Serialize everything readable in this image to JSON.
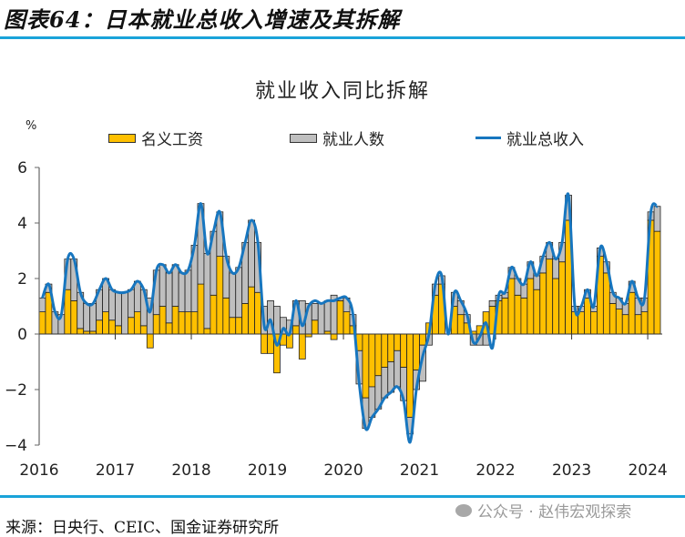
{
  "figure": {
    "title": "图表64：日本就业总收入增速及其拆解",
    "source": "来源：日央行、CEIC、国金证券研究所",
    "watermark": "公众号 · 赵伟宏观探索"
  },
  "colors": {
    "wage": "#FFC000",
    "employment": "#BFBFBF",
    "total": "#1776BF",
    "rule": "#1AA3D9"
  },
  "chart_data": {
    "type": "bar",
    "stacked": true,
    "title": "就业收入同比拆解",
    "ylabel": "%",
    "xlabel": "",
    "ylim": [
      -4,
      6
    ],
    "yticks": [
      -4,
      -2,
      0,
      2,
      4,
      6
    ],
    "xticks": [
      "2016",
      "2017",
      "2018",
      "2019",
      "2020",
      "2021",
      "2022",
      "2023",
      "2024"
    ],
    "legend_position": "top",
    "grid": false,
    "frequency": "monthly",
    "start": "2016-01",
    "series": [
      {
        "name": "名义工资",
        "type": "bar",
        "color": "#FFC000",
        "values": [
          0.8,
          1.5,
          0.0,
          0.0,
          1.6,
          1.2,
          0.2,
          0.1,
          0.1,
          0.5,
          0.8,
          0.5,
          0.3,
          0.0,
          0.6,
          0.8,
          0.3,
          -0.5,
          0.7,
          1.0,
          0.4,
          1.0,
          0.8,
          0.8,
          0.8,
          1.8,
          0.2,
          1.4,
          2.8,
          1.3,
          0.6,
          0.6,
          1.1,
          1.7,
          1.5,
          -0.7,
          -0.7,
          -1.4,
          -0.4,
          -0.5,
          0.3,
          -0.9,
          -0.1,
          0.5,
          0.0,
          0.1,
          -0.2,
          1.2,
          0.8,
          0.3,
          -0.6,
          -2.3,
          -1.9,
          -1.5,
          -1.2,
          -1.0,
          -0.6,
          -1.2,
          -3.0,
          -1.3,
          -0.4,
          0.4,
          1.4,
          1.8,
          0.0,
          1.0,
          0.7,
          0.4,
          0.1,
          0.3,
          0.8,
          1.0,
          1.2,
          1.3,
          2.0,
          1.4,
          1.3,
          2.0,
          1.6,
          2.2,
          2.7,
          2.0,
          2.6,
          4.1,
          0.8,
          0.8,
          1.3,
          0.8,
          2.8,
          2.2,
          1.1,
          0.9,
          0.7,
          1.5,
          0.7,
          0.8,
          4.1,
          3.7
        ],
        "note": "estimated monthly values read from chart"
      },
      {
        "name": "就业人数",
        "type": "bar",
        "color": "#BFBFBF",
        "values": [
          0.5,
          0.3,
          0.8,
          0.7,
          1.1,
          1.5,
          1.3,
          1.0,
          1.0,
          1.1,
          1.2,
          1.1,
          1.2,
          1.5,
          1.0,
          1.1,
          1.3,
          1.3,
          1.6,
          1.5,
          1.8,
          1.5,
          1.4,
          1.5,
          2.4,
          2.9,
          2.7,
          2.3,
          1.6,
          1.5,
          1.6,
          1.8,
          2.2,
          2.4,
          1.8,
          1.0,
          1.2,
          1.0,
          0.6,
          0.5,
          0.9,
          1.2,
          1.1,
          0.6,
          1.1,
          1.1,
          1.4,
          0.1,
          0.5,
          0.4,
          -1.2,
          -1.1,
          -1.1,
          -1.2,
          -1.1,
          -1.1,
          -1.3,
          -1.2,
          -0.6,
          -0.7,
          -1.3,
          -0.4,
          0.4,
          0.3,
          0.0,
          0.5,
          0.5,
          0.3,
          -0.4,
          -0.4,
          -0.4,
          0.2,
          0.2,
          0.2,
          0.4,
          0.6,
          0.5,
          0.6,
          0.5,
          0.6,
          0.6,
          0.7,
          0.7,
          0.9,
          0.2,
          0.2,
          0.3,
          0.2,
          0.3,
          0.4,
          0.4,
          0.4,
          0.4,
          0.4,
          0.6,
          0.5,
          0.3,
          0.9
        ],
        "note": "estimated monthly values read from chart"
      },
      {
        "name": "就业总收入",
        "type": "line",
        "color": "#1776BF",
        "values": [
          1.3,
          1.8,
          0.8,
          0.7,
          2.7,
          2.7,
          1.5,
          1.1,
          1.1,
          1.6,
          2.0,
          1.6,
          1.5,
          1.5,
          1.6,
          1.9,
          1.6,
          0.8,
          2.3,
          2.5,
          2.2,
          2.5,
          2.2,
          2.3,
          3.2,
          4.7,
          2.9,
          3.7,
          4.4,
          2.8,
          2.2,
          2.4,
          3.3,
          4.1,
          3.3,
          0.3,
          0.5,
          -0.4,
          0.2,
          0.0,
          1.2,
          0.3,
          1.0,
          1.2,
          1.1,
          1.2,
          1.2,
          1.3,
          1.3,
          0.7,
          -1.8,
          -3.4,
          -3.0,
          -2.7,
          -2.3,
          -2.1,
          -1.9,
          -2.4,
          -3.9,
          -2.0,
          -0.8,
          0.0,
          1.8,
          2.1,
          0.0,
          1.5,
          1.2,
          0.7,
          -0.3,
          -0.1,
          0.4,
          -0.5,
          1.4,
          1.5,
          2.4,
          2.0,
          1.8,
          2.6,
          2.1,
          2.8,
          3.3,
          2.7,
          3.3,
          5.0,
          1.0,
          1.0,
          1.6,
          1.0,
          3.1,
          2.6,
          1.5,
          1.3,
          1.1,
          1.9,
          1.3,
          1.3,
          4.4,
          4.6
        ]
      }
    ]
  }
}
